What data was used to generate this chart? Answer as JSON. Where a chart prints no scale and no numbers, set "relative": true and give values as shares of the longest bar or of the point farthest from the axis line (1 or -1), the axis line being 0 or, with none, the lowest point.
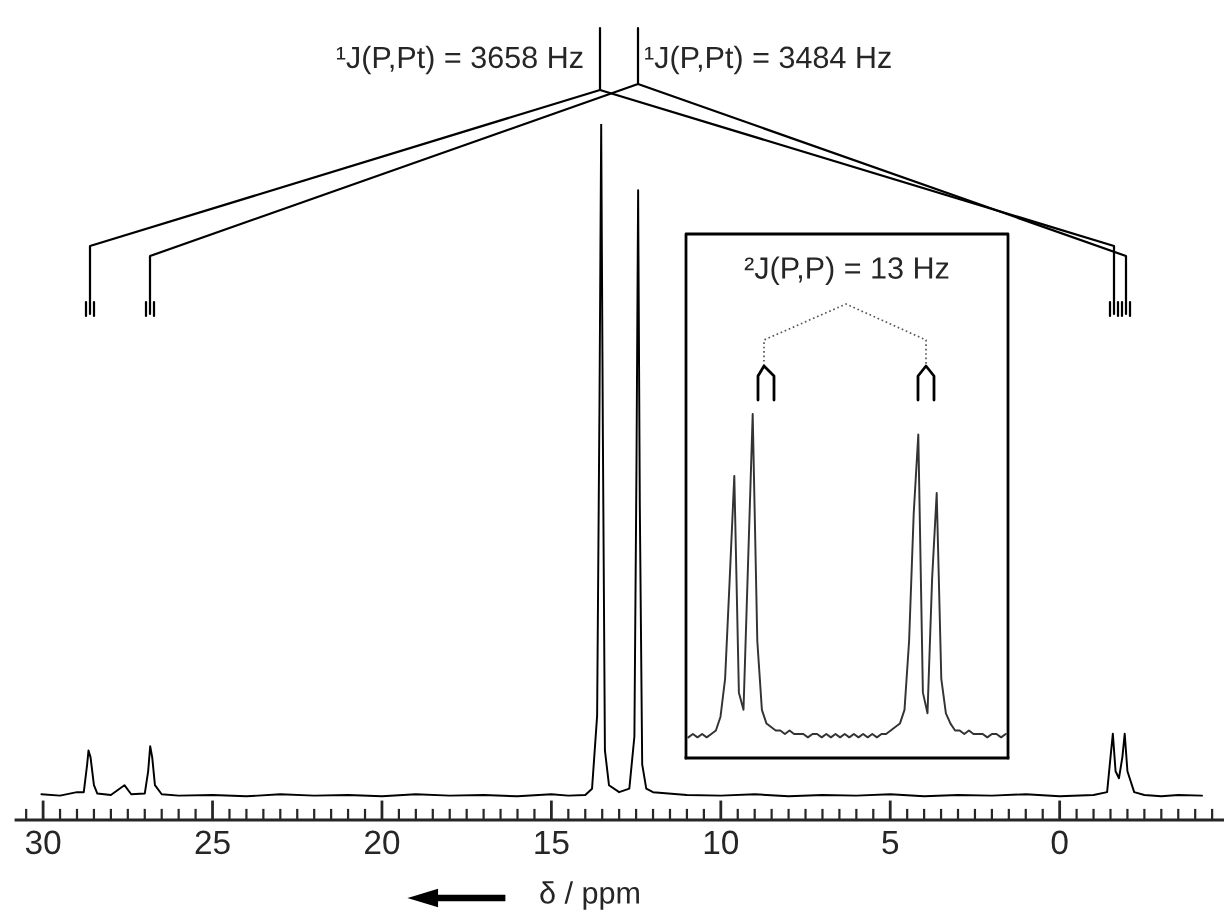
{
  "chart_data": [
    {
      "type": "line",
      "relative": true,
      "xlabel": "δ / ppm",
      "xlim": [
        30.8,
        -4.85
      ],
      "xticks": [
        30,
        25,
        20,
        15,
        10,
        5,
        0
      ],
      "annotations": [
        "¹J(P,Pt) = 3658 Hz",
        "¹J(P,Pt) = 3484 Hz"
      ],
      "x": [
        30.05,
        29.5,
        29.0,
        28.8,
        28.7,
        28.66,
        28.6,
        28.5,
        28.4,
        28.0,
        27.6,
        27.4,
        27.0,
        26.9,
        26.84,
        26.78,
        26.7,
        26.5,
        26.0,
        25,
        24,
        23,
        22,
        21,
        20,
        19,
        18,
        17,
        16,
        15,
        14.5,
        14,
        13.8,
        13.65,
        13.58,
        13.53,
        13.48,
        13.42,
        13.3,
        13.0,
        12.7,
        12.55,
        12.49,
        12.44,
        12.39,
        12.32,
        12.2,
        12,
        11,
        10,
        9,
        8,
        7,
        6,
        5,
        4,
        3,
        2,
        1,
        0,
        -1,
        -1.4,
        -1.5,
        -1.57,
        -1.65,
        -1.75,
        -1.85,
        -1.92,
        -2.0,
        -2.2,
        -2.5,
        -3,
        -3.5,
        -4.2
      ],
      "series": [
        {
          "color": "#000000",
          "values": [
            0.037,
            0.035,
            0.04,
            0.04,
            0.08,
            0.1,
            0.09,
            0.05,
            0.038,
            0.036,
            0.05,
            0.037,
            0.038,
            0.07,
            0.106,
            0.09,
            0.05,
            0.037,
            0.035,
            0.036,
            0.034,
            0.037,
            0.035,
            0.036,
            0.034,
            0.037,
            0.035,
            0.036,
            0.034,
            0.037,
            0.035,
            0.036,
            0.045,
            0.15,
            0.6,
            1.0,
            0.55,
            0.1,
            0.05,
            0.04,
            0.045,
            0.12,
            0.5,
            0.905,
            0.45,
            0.08,
            0.045,
            0.04,
            0.036,
            0.035,
            0.037,
            0.034,
            0.036,
            0.035,
            0.037,
            0.034,
            0.036,
            0.035,
            0.037,
            0.034,
            0.036,
            0.04,
            0.09,
            0.124,
            0.07,
            0.06,
            0.09,
            0.124,
            0.07,
            0.04,
            0.036,
            0.034,
            0.036,
            0.035
          ]
        }
      ]
    },
    {
      "type": "line",
      "relative": true,
      "annotations": [
        "²J(P,P) = 13 Hz"
      ],
      "categories": [
        null,
        null,
        null,
        null,
        null,
        null,
        null,
        null,
        null,
        null,
        null,
        null,
        null,
        null,
        null,
        null,
        null,
        null,
        null,
        null,
        null,
        null,
        null,
        null,
        null,
        null,
        null,
        null,
        null,
        null,
        null,
        null,
        null,
        null,
        null,
        null,
        null,
        null,
        null,
        null,
        null,
        null,
        null,
        null,
        null,
        null,
        null,
        null,
        null,
        null,
        null,
        null,
        null,
        null,
        null,
        null,
        null,
        null,
        null,
        null,
        null,
        null,
        null,
        null,
        null,
        null,
        null,
        null,
        null,
        null
      ],
      "series": [
        {
          "color": "#333333",
          "values": [
            0.06,
            0.07,
            0.06,
            0.07,
            0.06,
            0.07,
            0.08,
            0.12,
            0.23,
            0.52,
            0.82,
            0.19,
            0.14,
            0.57,
            1.0,
            0.34,
            0.14,
            0.1,
            0.09,
            0.08,
            0.08,
            0.07,
            0.08,
            0.07,
            0.07,
            0.07,
            0.06,
            0.07,
            0.07,
            0.06,
            0.07,
            0.06,
            0.07,
            0.06,
            0.07,
            0.06,
            0.07,
            0.06,
            0.07,
            0.06,
            0.07,
            0.06,
            0.07,
            0.07,
            0.08,
            0.09,
            0.1,
            0.14,
            0.34,
            0.71,
            0.94,
            0.19,
            0.13,
            0.52,
            0.77,
            0.23,
            0.13,
            0.1,
            0.08,
            0.08,
            0.07,
            0.08,
            0.07,
            0.07,
            0.07,
            0.06,
            0.07,
            0.07,
            0.06,
            0.07
          ]
        }
      ]
    }
  ]
}
